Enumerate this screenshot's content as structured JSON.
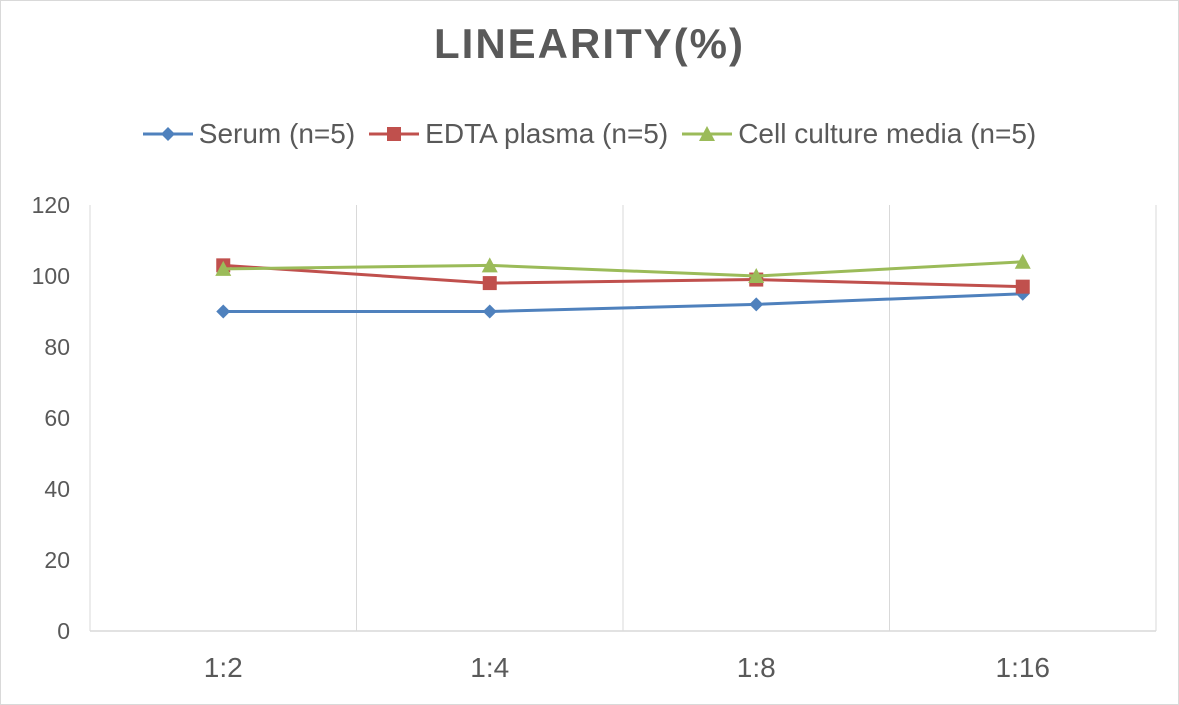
{
  "chart_data": {
    "type": "line",
    "title": "LINEARITY(%)",
    "xlabel": "",
    "ylabel": "",
    "categories": [
      "1:2",
      "1:4",
      "1:8",
      "1:16"
    ],
    "ylim": [
      0,
      120
    ],
    "yticks": [
      0,
      20,
      40,
      60,
      80,
      100,
      120
    ],
    "grid": "vertical",
    "legend_position": "top",
    "series": [
      {
        "name": "Serum (n=5)",
        "values": [
          90,
          90,
          92,
          95
        ],
        "color": "#4f81bd",
        "marker": "diamond"
      },
      {
        "name": "EDTA plasma (n=5)",
        "values": [
          103,
          98,
          99,
          97
        ],
        "color": "#c0504d",
        "marker": "square"
      },
      {
        "name": "Cell culture media (n=5)",
        "values": [
          102,
          103,
          100,
          104
        ],
        "color": "#9bbb59",
        "marker": "triangle"
      }
    ]
  }
}
